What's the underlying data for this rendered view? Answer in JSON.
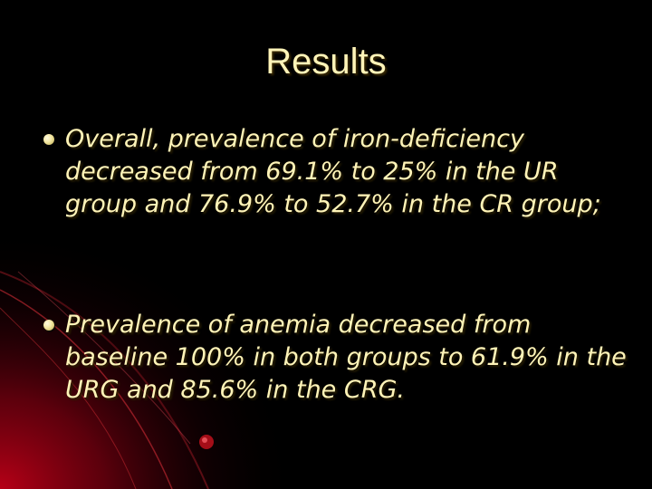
{
  "slide": {
    "title": "Results",
    "bullets": [
      {
        "text": "Overall, prevalence of iron-deficiency decreased from 69.1% to 25% in the UR group and 76.9% to 52.7% in the CR group;"
      },
      {
        "text": "Prevalence of anemia decreased from baseline 100% in both groups to 61.9% in the URG and 85.6% in the CRG."
      }
    ]
  },
  "colors": {
    "background": "#000000",
    "text": "#fff4b8",
    "accent": "#c8102e"
  }
}
